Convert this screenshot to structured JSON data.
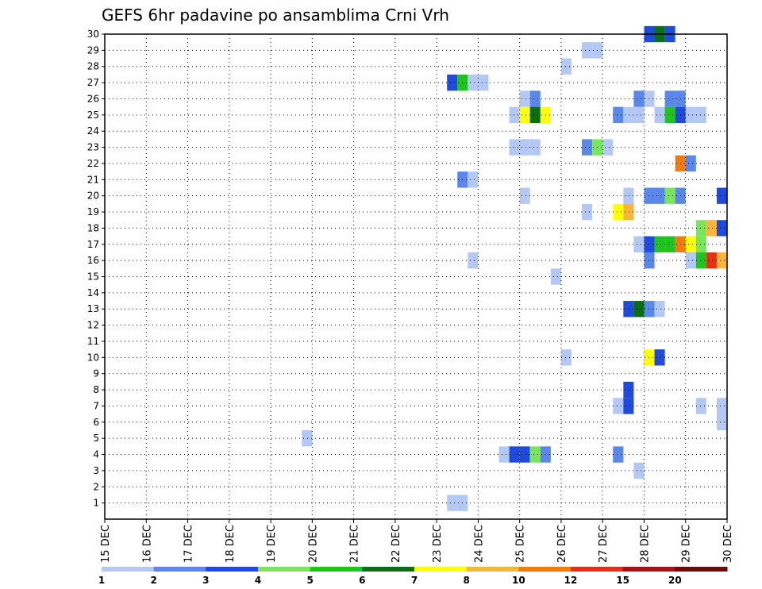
{
  "chart_data": {
    "type": "heatmap",
    "title": "GEFS 6hr padavine po ansamblima Crni Vrh",
    "xlabel": "",
    "ylabel": "",
    "x_ticks": [
      "15 DEC",
      "16 DEC",
      "17 DEC",
      "18 DEC",
      "19 DEC",
      "20 DEC",
      "21 DEC",
      "22 DEC",
      "23 DEC",
      "24 DEC",
      "25 DEC",
      "26 DEC",
      "27 DEC",
      "28 DEC",
      "29 DEC",
      "30 DEC"
    ],
    "xlim": [
      15,
      30
    ],
    "y_ticks": [
      1,
      2,
      3,
      4,
      5,
      6,
      7,
      8,
      9,
      10,
      11,
      12,
      13,
      14,
      15,
      16,
      17,
      18,
      19,
      20,
      21,
      22,
      23,
      24,
      25,
      26,
      27,
      28,
      29,
      30
    ],
    "ylim": [
      0,
      30
    ],
    "grid": true,
    "time_step_hours": 6,
    "colorbar": {
      "levels": [
        1,
        2,
        3,
        4,
        5,
        6,
        7,
        8,
        10,
        12,
        15,
        20
      ],
      "colors": [
        "#b4c8f5",
        "#5a87ea",
        "#1f4bdc",
        "#78e55a",
        "#1ec31e",
        "#0a6e14",
        "#ffff0a",
        "#fbb43c",
        "#f07c0a",
        "#e13214",
        "#a51414",
        "#6e0a0a"
      ]
    },
    "cells": [
      {
        "member": 30,
        "t": 28.0,
        "v": 3
      },
      {
        "member": 30,
        "t": 28.25,
        "v": 6
      },
      {
        "member": 30,
        "t": 28.5,
        "v": 3
      },
      {
        "member": 29,
        "t": 26.5,
        "v": 1
      },
      {
        "member": 29,
        "t": 26.75,
        "v": 1
      },
      {
        "member": 28,
        "t": 26.0,
        "v": 1
      },
      {
        "member": 27,
        "t": 23.25,
        "v": 3
      },
      {
        "member": 27,
        "t": 23.5,
        "v": 5
      },
      {
        "member": 27,
        "t": 23.75,
        "v": 1
      },
      {
        "member": 27,
        "t": 24.0,
        "v": 1
      },
      {
        "member": 26,
        "t": 25.0,
        "v": 1
      },
      {
        "member": 26,
        "t": 25.25,
        "v": 2
      },
      {
        "member": 26,
        "t": 27.75,
        "v": 2
      },
      {
        "member": 26,
        "t": 28.0,
        "v": 1
      },
      {
        "member": 26,
        "t": 28.5,
        "v": 2
      },
      {
        "member": 26,
        "t": 28.75,
        "v": 2
      },
      {
        "member": 25,
        "t": 24.75,
        "v": 1
      },
      {
        "member": 25,
        "t": 25.0,
        "v": 7
      },
      {
        "member": 25,
        "t": 25.25,
        "v": 6
      },
      {
        "member": 25,
        "t": 25.5,
        "v": 7
      },
      {
        "member": 25,
        "t": 27.25,
        "v": 2
      },
      {
        "member": 25,
        "t": 27.5,
        "v": 1
      },
      {
        "member": 25,
        "t": 27.75,
        "v": 1
      },
      {
        "member": 25,
        "t": 28.25,
        "v": 1
      },
      {
        "member": 25,
        "t": 28.5,
        "v": 5
      },
      {
        "member": 25,
        "t": 28.75,
        "v": 3
      },
      {
        "member": 25,
        "t": 29.0,
        "v": 1
      },
      {
        "member": 25,
        "t": 29.25,
        "v": 1
      },
      {
        "member": 23,
        "t": 24.75,
        "v": 1
      },
      {
        "member": 23,
        "t": 25.0,
        "v": 1
      },
      {
        "member": 23,
        "t": 25.25,
        "v": 1
      },
      {
        "member": 23,
        "t": 26.5,
        "v": 2
      },
      {
        "member": 23,
        "t": 26.75,
        "v": 4
      },
      {
        "member": 23,
        "t": 27.0,
        "v": 1
      },
      {
        "member": 22,
        "t": 28.75,
        "v": 10
      },
      {
        "member": 22,
        "t": 29.0,
        "v": 2
      },
      {
        "member": 21,
        "t": 23.5,
        "v": 2
      },
      {
        "member": 21,
        "t": 23.75,
        "v": 1
      },
      {
        "member": 20,
        "t": 25.0,
        "v": 1
      },
      {
        "member": 20,
        "t": 27.5,
        "v": 1
      },
      {
        "member": 20,
        "t": 28.0,
        "v": 2
      },
      {
        "member": 20,
        "t": 28.25,
        "v": 2
      },
      {
        "member": 20,
        "t": 28.5,
        "v": 4
      },
      {
        "member": 20,
        "t": 28.75,
        "v": 2
      },
      {
        "member": 20,
        "t": 29.75,
        "v": 3
      },
      {
        "member": 19,
        "t": 26.5,
        "v": 1
      },
      {
        "member": 19,
        "t": 27.25,
        "v": 7
      },
      {
        "member": 19,
        "t": 27.5,
        "v": 8
      },
      {
        "member": 18,
        "t": 29.25,
        "v": 4
      },
      {
        "member": 18,
        "t": 29.5,
        "v": 8
      },
      {
        "member": 18,
        "t": 29.75,
        "v": 3
      },
      {
        "member": 17,
        "t": 27.75,
        "v": 1
      },
      {
        "member": 17,
        "t": 28.0,
        "v": 3
      },
      {
        "member": 17,
        "t": 28.25,
        "v": 5
      },
      {
        "member": 17,
        "t": 28.5,
        "v": 5
      },
      {
        "member": 17,
        "t": 28.75,
        "v": 10
      },
      {
        "member": 17,
        "t": 29.0,
        "v": 7
      },
      {
        "member": 17,
        "t": 29.25,
        "v": 4
      },
      {
        "member": 16,
        "t": 23.75,
        "v": 1
      },
      {
        "member": 16,
        "t": 28.0,
        "v": 2
      },
      {
        "member": 16,
        "t": 29.0,
        "v": 1
      },
      {
        "member": 16,
        "t": 29.25,
        "v": 5
      },
      {
        "member": 16,
        "t": 29.5,
        "v": 12
      },
      {
        "member": 16,
        "t": 29.75,
        "v": 8
      },
      {
        "member": 15,
        "t": 25.75,
        "v": 1
      },
      {
        "member": 13,
        "t": 27.5,
        "v": 3
      },
      {
        "member": 13,
        "t": 27.75,
        "v": 6
      },
      {
        "member": 13,
        "t": 28.0,
        "v": 2
      },
      {
        "member": 13,
        "t": 28.25,
        "v": 1
      },
      {
        "member": 10,
        "t": 26.0,
        "v": 1
      },
      {
        "member": 10,
        "t": 28.0,
        "v": 7
      },
      {
        "member": 10,
        "t": 28.25,
        "v": 3
      },
      {
        "member": 8,
        "t": 27.5,
        "v": 3
      },
      {
        "member": 7,
        "t": 27.25,
        "v": 1
      },
      {
        "member": 7,
        "t": 27.5,
        "v": 3
      },
      {
        "member": 7,
        "t": 29.25,
        "v": 1
      },
      {
        "member": 7,
        "t": 29.75,
        "v": 1
      },
      {
        "member": 6,
        "t": 29.75,
        "v": 1
      },
      {
        "member": 5,
        "t": 19.75,
        "v": 1
      },
      {
        "member": 4,
        "t": 24.5,
        "v": 1
      },
      {
        "member": 4,
        "t": 24.75,
        "v": 3
      },
      {
        "member": 4,
        "t": 25.0,
        "v": 3
      },
      {
        "member": 4,
        "t": 25.25,
        "v": 4
      },
      {
        "member": 4,
        "t": 25.5,
        "v": 2
      },
      {
        "member": 4,
        "t": 27.25,
        "v": 2
      },
      {
        "member": 3,
        "t": 27.75,
        "v": 1
      },
      {
        "member": 1,
        "t": 23.25,
        "v": 1
      },
      {
        "member": 1,
        "t": 23.5,
        "v": 1
      }
    ]
  }
}
